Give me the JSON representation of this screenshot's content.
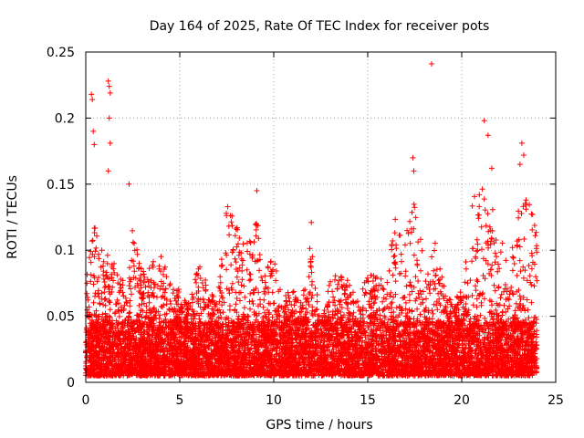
{
  "chart_data": {
    "type": "scatter",
    "title": "Day 164 of 2025, Rate Of TEC Index for receiver pots",
    "xlabel": "GPS time / hours",
    "ylabel": "ROTI / TECUs",
    "xlim": [
      0,
      25
    ],
    "ylim": [
      0,
      0.25
    ],
    "xticks": [
      0,
      5,
      10,
      15,
      20,
      25
    ],
    "xtick_labels": [
      "0",
      "5",
      "10",
      "15",
      "20",
      "25"
    ],
    "yticks": [
      0,
      0.05,
      0.1,
      0.15,
      0.2,
      0.25
    ],
    "ytick_labels": [
      "0",
      "0.05",
      "0.1",
      "0.15",
      "0.2",
      "0.25"
    ],
    "grid": true,
    "marker": "+",
    "marker_color": "#ff0000",
    "data_x_range": [
      0,
      24
    ],
    "peak_points": [
      {
        "x": 0.3,
        "y": 0.218
      },
      {
        "x": 0.35,
        "y": 0.214
      },
      {
        "x": 0.4,
        "y": 0.19
      },
      {
        "x": 0.45,
        "y": 0.18
      },
      {
        "x": 1.2,
        "y": 0.228
      },
      {
        "x": 1.25,
        "y": 0.224
      },
      {
        "x": 1.3,
        "y": 0.219
      },
      {
        "x": 1.25,
        "y": 0.2
      },
      {
        "x": 1.3,
        "y": 0.181
      },
      {
        "x": 1.2,
        "y": 0.16
      },
      {
        "x": 2.3,
        "y": 0.15
      },
      {
        "x": 9.1,
        "y": 0.145
      },
      {
        "x": 12.0,
        "y": 0.121
      },
      {
        "x": 17.4,
        "y": 0.17
      },
      {
        "x": 17.45,
        "y": 0.16
      },
      {
        "x": 18.4,
        "y": 0.241
      },
      {
        "x": 21.2,
        "y": 0.198
      },
      {
        "x": 21.4,
        "y": 0.187
      },
      {
        "x": 21.6,
        "y": 0.162
      },
      {
        "x": 23.2,
        "y": 0.181
      },
      {
        "x": 23.3,
        "y": 0.172
      },
      {
        "x": 23.1,
        "y": 0.165
      }
    ],
    "envelope_upper": [
      [
        0,
        0.09
      ],
      [
        0.5,
        0.12
      ],
      [
        1,
        0.1
      ],
      [
        1.5,
        0.09
      ],
      [
        2,
        0.08
      ],
      [
        2.5,
        0.12
      ],
      [
        3,
        0.085
      ],
      [
        3.5,
        0.09
      ],
      [
        4,
        0.1
      ],
      [
        4.5,
        0.085
      ],
      [
        5,
        0.07
      ],
      [
        5.5,
        0.06
      ],
      [
        6,
        0.09
      ],
      [
        6.5,
        0.075
      ],
      [
        7,
        0.06
      ],
      [
        7.5,
        0.14
      ],
      [
        8,
        0.12
      ],
      [
        8.5,
        0.1
      ],
      [
        9,
        0.14
      ],
      [
        9.5,
        0.09
      ],
      [
        10,
        0.1
      ],
      [
        10.5,
        0.06
      ],
      [
        11,
        0.08
      ],
      [
        11.5,
        0.06
      ],
      [
        12,
        0.11
      ],
      [
        12.5,
        0.045
      ],
      [
        13,
        0.08
      ],
      [
        13.5,
        0.085
      ],
      [
        14,
        0.08
      ],
      [
        14.5,
        0.06
      ],
      [
        15,
        0.085
      ],
      [
        15.5,
        0.08
      ],
      [
        16,
        0.08
      ],
      [
        16.5,
        0.13
      ],
      [
        17,
        0.11
      ],
      [
        17.5,
        0.14
      ],
      [
        18,
        0.09
      ],
      [
        18.5,
        0.12
      ],
      [
        19,
        0.075
      ],
      [
        19.5,
        0.06
      ],
      [
        20,
        0.07
      ],
      [
        20.5,
        0.13
      ],
      [
        21,
        0.17
      ],
      [
        21.5,
        0.14
      ],
      [
        22,
        0.12
      ],
      [
        22.5,
        0.085
      ],
      [
        23,
        0.13
      ],
      [
        23.5,
        0.14
      ],
      [
        24,
        0.12
      ]
    ],
    "dense_band": [
      0.005,
      0.045
    ]
  }
}
